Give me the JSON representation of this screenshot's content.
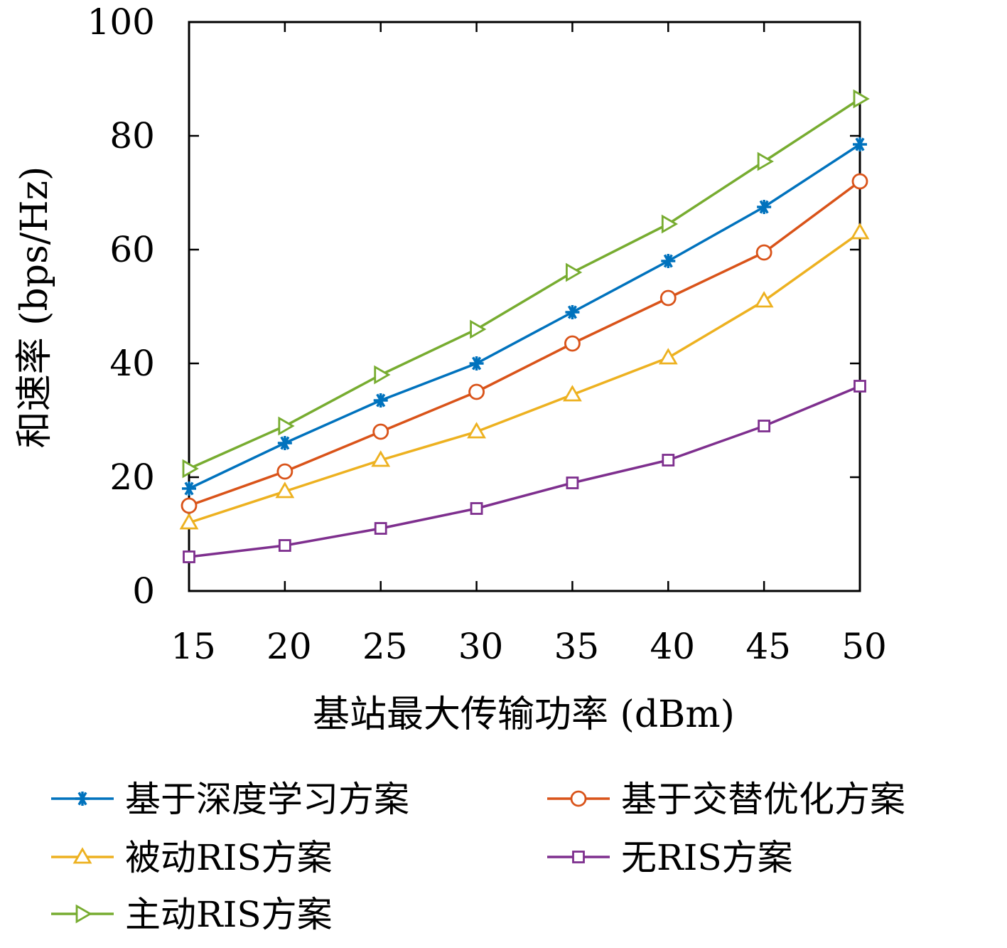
{
  "chart_data": {
    "type": "line",
    "title": "",
    "xlabel": "基站最大传输功率 (dBm)",
    "ylabel": "和速率 (bps/Hz)",
    "x": [
      15,
      20,
      25,
      30,
      35,
      40,
      45,
      50
    ],
    "xlim": [
      15,
      50
    ],
    "ylim": [
      0,
      100
    ],
    "xticks": [
      "15",
      "20",
      "25",
      "30",
      "35",
      "40",
      "45",
      "50"
    ],
    "yticks": [
      "0",
      "20",
      "40",
      "60",
      "80",
      "100"
    ],
    "grid": false,
    "legend_position": "bottom",
    "series": [
      {
        "name": "基于深度学习方案",
        "color": "#0072BD",
        "marker": "asterisk",
        "values": [
          18.0,
          26.0,
          33.5,
          40.0,
          49.0,
          58.0,
          67.5,
          78.5
        ]
      },
      {
        "name": "基于交替优化方案",
        "color": "#D95319",
        "marker": "circle",
        "values": [
          15.0,
          21.0,
          28.0,
          35.0,
          43.5,
          51.5,
          59.5,
          72.0
        ]
      },
      {
        "name": "被动RIS方案",
        "color": "#EDB120",
        "marker": "triangle-up",
        "values": [
          12.0,
          17.5,
          23.0,
          28.0,
          34.5,
          41.0,
          51.0,
          63.0
        ]
      },
      {
        "name": "无RIS方案",
        "color": "#7E2F8E",
        "marker": "square",
        "values": [
          6.0,
          8.0,
          11.0,
          14.5,
          19.0,
          23.0,
          29.0,
          36.0
        ]
      },
      {
        "name": "主动RIS方案",
        "color": "#77AC30",
        "marker": "triangle-right",
        "values": [
          21.5,
          29.0,
          38.0,
          46.0,
          56.0,
          64.5,
          75.5,
          86.5
        ]
      }
    ]
  }
}
